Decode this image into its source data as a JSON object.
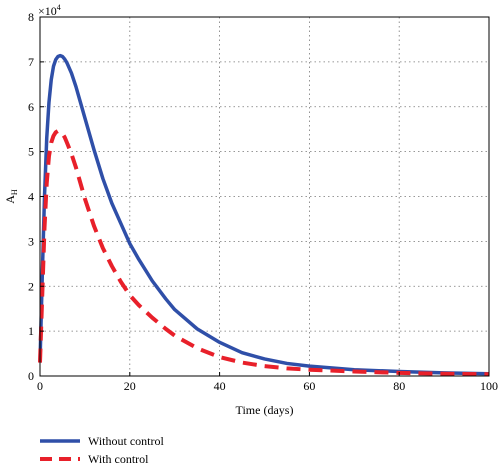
{
  "chart_data": {
    "type": "line",
    "xlabel": "Time (days)",
    "ylabel": "A",
    "ylabel_sub": "H",
    "y_multiplier": "×10",
    "y_multiplier_exp": "4",
    "xlim": [
      0,
      100
    ],
    "ylim": [
      0,
      8
    ],
    "xticks": [
      "0",
      "20",
      "40",
      "60",
      "80",
      "100"
    ],
    "yticks": [
      "0",
      "1",
      "2",
      "3",
      "4",
      "5",
      "6",
      "7",
      "8"
    ],
    "grid": true,
    "legend_position": "bottom-left",
    "series": [
      {
        "name": "Without control",
        "color": "#2f4fa8",
        "style": "solid",
        "x": [
          0,
          0.5,
          1,
          1.5,
          2,
          2.5,
          3,
          3.5,
          4,
          4.5,
          5,
          5.5,
          6,
          7,
          8,
          9,
          10,
          12,
          14,
          16,
          18,
          20,
          22,
          25,
          28,
          30,
          35,
          40,
          45,
          50,
          55,
          60,
          70,
          80,
          90,
          100
        ],
        "values": [
          0.3,
          2.2,
          4.0,
          5.3,
          6.1,
          6.6,
          6.9,
          7.05,
          7.12,
          7.14,
          7.12,
          7.06,
          6.98,
          6.75,
          6.45,
          6.1,
          5.75,
          5.05,
          4.4,
          3.85,
          3.4,
          2.95,
          2.6,
          2.12,
          1.72,
          1.48,
          1.05,
          0.75,
          0.52,
          0.38,
          0.28,
          0.22,
          0.14,
          0.1,
          0.07,
          0.05
        ]
      },
      {
        "name": "With control",
        "color": "#e8202a",
        "style": "dashed",
        "x": [
          0,
          0.5,
          1,
          1.5,
          2,
          2.5,
          3,
          3.5,
          4,
          4.5,
          5,
          5.5,
          6,
          7,
          8,
          9,
          10,
          12,
          14,
          16,
          18,
          20,
          22,
          25,
          28,
          30,
          35,
          40,
          45,
          50,
          55,
          60,
          70,
          80,
          90,
          100
        ],
        "values": [
          0.3,
          1.8,
          3.3,
          4.3,
          4.9,
          5.2,
          5.35,
          5.43,
          5.46,
          5.45,
          5.4,
          5.32,
          5.2,
          4.95,
          4.65,
          4.3,
          3.95,
          3.35,
          2.85,
          2.45,
          2.1,
          1.8,
          1.58,
          1.3,
          1.05,
          0.9,
          0.62,
          0.42,
          0.3,
          0.22,
          0.17,
          0.14,
          0.1,
          0.07,
          0.05,
          0.04
        ]
      }
    ]
  }
}
